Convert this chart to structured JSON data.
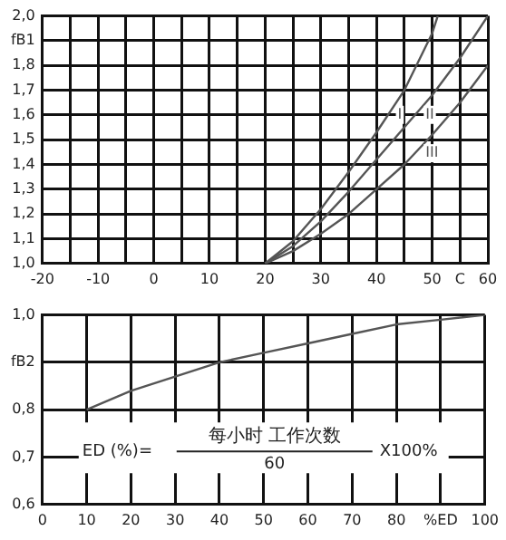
{
  "chart_data": [
    {
      "type": "line",
      "series": [
        {
          "name": "I",
          "color": "#555555",
          "x": [
            20,
            25,
            30,
            35,
            40,
            45,
            50,
            51
          ],
          "values": [
            1.0,
            1.09,
            1.22,
            1.37,
            1.53,
            1.7,
            1.93,
            2.0
          ]
        },
        {
          "name": "II",
          "color": "#555555",
          "x": [
            20,
            25,
            30,
            35,
            40,
            45,
            50,
            55,
            60
          ],
          "values": [
            1.0,
            1.07,
            1.17,
            1.29,
            1.42,
            1.55,
            1.68,
            1.83,
            2.0
          ]
        },
        {
          "name": "III",
          "color": "#555555",
          "x": [
            20,
            25,
            30,
            35,
            40,
            45,
            50,
            55,
            60
          ],
          "values": [
            1.0,
            1.05,
            1.12,
            1.2,
            1.3,
            1.4,
            1.52,
            1.65,
            1.8
          ]
        }
      ],
      "xlim": [
        -20,
        60
      ],
      "xticks": [
        -20,
        {
          "value": -15,
          "label": null
        },
        -10,
        {
          "value": -5,
          "label": null
        },
        0,
        {
          "value": 5,
          "label": null
        },
        10,
        {
          "value": 15,
          "label": null
        },
        20,
        {
          "value": 25,
          "label": null
        },
        30,
        {
          "value": 35,
          "label": null
        },
        40,
        {
          "value": 45,
          "label": null
        },
        50,
        {
          "value": 55,
          "label": "C"
        },
        60
      ],
      "ylim": [
        1.0,
        2.0
      ],
      "yticks": [
        {
          "value": 1.0,
          "label": "1,0"
        },
        {
          "value": 1.1,
          "label": "1,1"
        },
        {
          "value": 1.2,
          "label": "1,2"
        },
        {
          "value": 1.3,
          "label": "1,3"
        },
        {
          "value": 1.4,
          "label": "1,4"
        },
        {
          "value": 1.5,
          "label": "1,5"
        },
        {
          "value": 1.6,
          "label": "1,6"
        },
        {
          "value": 1.7,
          "label": "1,7"
        },
        {
          "value": 1.8,
          "label": "1,8"
        },
        {
          "value": 1.9,
          "label": "fB1"
        },
        {
          "value": 2.0,
          "label": "2,0"
        }
      ],
      "grid": true,
      "legend": false,
      "marker": "none",
      "line_style": "solid"
    },
    {
      "type": "line",
      "series": [
        {
          "color": "#555555",
          "x": [
            10,
            20,
            30,
            40,
            50,
            60,
            70,
            80,
            90,
            100
          ],
          "values": [
            0.8,
            0.84,
            0.87,
            0.9,
            0.92,
            0.94,
            0.96,
            0.98,
            0.99,
            1.0
          ]
        }
      ],
      "xlim": [
        0,
        100
      ],
      "xticks": [
        0,
        10,
        20,
        30,
        40,
        50,
        60,
        70,
        80,
        {
          "value": 90,
          "label": "%ED"
        },
        100
      ],
      "ylim": [
        0.6,
        1.0
      ],
      "yticks": [
        {
          "value": 0.6,
          "label": "0,6"
        },
        {
          "value": 0.7,
          "label": "0,7"
        },
        {
          "value": 0.8,
          "label": "0,8"
        },
        {
          "value": 0.9,
          "label": "fB2"
        },
        {
          "value": 1.0,
          "label": "1,0"
        }
      ],
      "annotations": [
        "ED (%)=",
        "每小时 工作次数",
        "60",
        "X100%"
      ],
      "grid": true,
      "legend": false,
      "marker": "none",
      "line_style": "solid"
    }
  ]
}
